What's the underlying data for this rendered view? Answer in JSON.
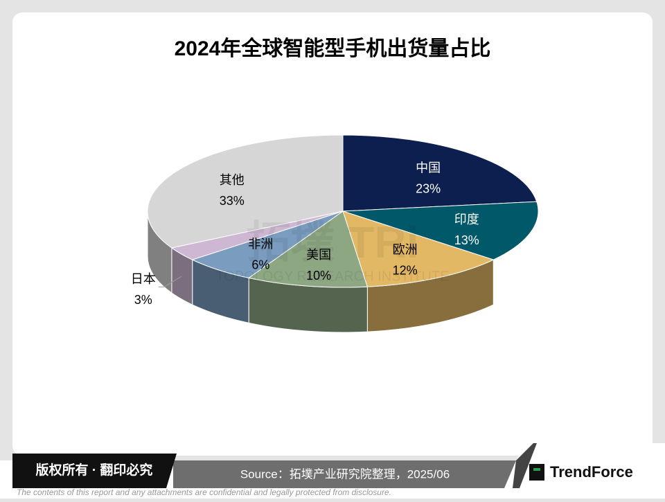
{
  "chart_data": {
    "type": "pie3d",
    "title": "2024年全球智能型手机出货量占比",
    "categories": [
      "中国",
      "印度",
      "欧洲",
      "美国",
      "非洲",
      "日本",
      "其他"
    ],
    "values": [
      23,
      13,
      12,
      10,
      6,
      3,
      33
    ],
    "value_labels": [
      "23%",
      "13%",
      "12%",
      "10%",
      "6%",
      "3%",
      "33%"
    ],
    "colors": [
      "#0c1f4e",
      "#005868",
      "#e3b865",
      "#8ea783",
      "#7a9cbf",
      "#cdb7d3",
      "#d6d6d6"
    ]
  },
  "watermark": {
    "logo": "拓墣 TRi",
    "name": "TOPOLOGY RESEARCH INSTITUTE"
  },
  "footer": {
    "copyright": "版权所有 · 翻印必究",
    "source": "Source：拓墣产业研究院整理，2025/06",
    "brand": "TrendForce",
    "disclaimer": "The contents of this report and any attachments are confidential and legally protected from disclosure."
  }
}
